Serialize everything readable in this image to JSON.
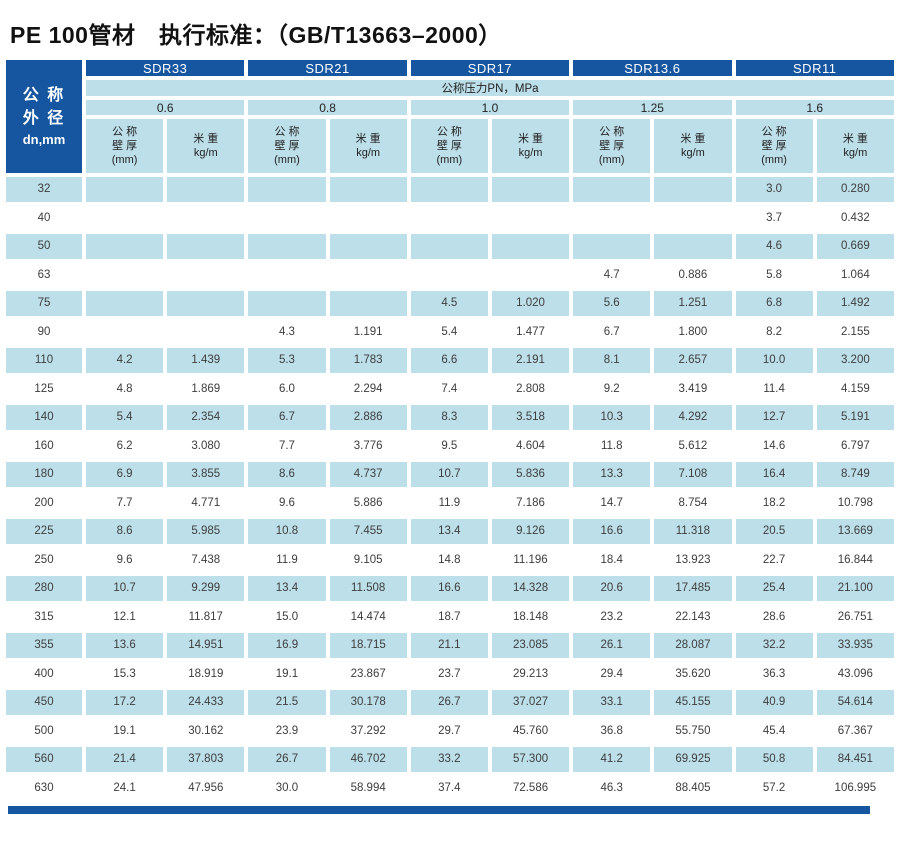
{
  "title": "PE 100管材　执行标准：（GB/T13663–2000）",
  "colors": {
    "dark_blue": "#1656A0",
    "light_blue": "#BDDFE9"
  },
  "table": {
    "corner": [
      "公 称",
      "外 径",
      "dn,mm"
    ],
    "sdr_headers": [
      "SDR33",
      "SDR21",
      "SDR17",
      "SDR13.6",
      "SDR11"
    ],
    "pressure_label": "公称压力PN，MPa",
    "pressures": [
      "0.6",
      "0.8",
      "1.0",
      "1.25",
      "1.6"
    ],
    "sub_headers": {
      "thickness": [
        "公 称",
        "壁 厚",
        "(mm)"
      ],
      "weight": [
        "米 重",
        "kg/m"
      ]
    },
    "rows": [
      {
        "dn": "32",
        "values": [
          "",
          "",
          "",
          "",
          "",
          "",
          "",
          "",
          "3.0",
          "0.280"
        ]
      },
      {
        "dn": "40",
        "values": [
          "",
          "",
          "",
          "",
          "",
          "",
          "",
          "",
          "3.7",
          "0.432"
        ]
      },
      {
        "dn": "50",
        "values": [
          "",
          "",
          "",
          "",
          "",
          "",
          "",
          "",
          "4.6",
          "0.669"
        ]
      },
      {
        "dn": "63",
        "values": [
          "",
          "",
          "",
          "",
          "",
          "",
          "4.7",
          "0.886",
          "5.8",
          "1.064"
        ]
      },
      {
        "dn": "75",
        "values": [
          "",
          "",
          "",
          "",
          "4.5",
          "1.020",
          "5.6",
          "1.251",
          "6.8",
          "1.492"
        ]
      },
      {
        "dn": "90",
        "values": [
          "",
          "",
          "4.3",
          "1.191",
          "5.4",
          "1.477",
          "6.7",
          "1.800",
          "8.2",
          "2.155"
        ]
      },
      {
        "dn": "110",
        "values": [
          "4.2",
          "1.439",
          "5.3",
          "1.783",
          "6.6",
          "2.191",
          "8.1",
          "2.657",
          "10.0",
          "3.200"
        ]
      },
      {
        "dn": "125",
        "values": [
          "4.8",
          "1.869",
          "6.0",
          "2.294",
          "7.4",
          "2.808",
          "9.2",
          "3.419",
          "11.4",
          "4.159"
        ]
      },
      {
        "dn": "140",
        "values": [
          "5.4",
          "2.354",
          "6.7",
          "2.886",
          "8.3",
          "3.518",
          "10.3",
          "4.292",
          "12.7",
          "5.191"
        ]
      },
      {
        "dn": "160",
        "values": [
          "6.2",
          "3.080",
          "7.7",
          "3.776",
          "9.5",
          "4.604",
          "11.8",
          "5.612",
          "14.6",
          "6.797"
        ]
      },
      {
        "dn": "180",
        "values": [
          "6.9",
          "3.855",
          "8.6",
          "4.737",
          "10.7",
          "5.836",
          "13.3",
          "7.108",
          "16.4",
          "8.749"
        ]
      },
      {
        "dn": "200",
        "values": [
          "7.7",
          "4.771",
          "9.6",
          "5.886",
          "11.9",
          "7.186",
          "14.7",
          "8.754",
          "18.2",
          "10.798"
        ]
      },
      {
        "dn": "225",
        "values": [
          "8.6",
          "5.985",
          "10.8",
          "7.455",
          "13.4",
          "9.126",
          "16.6",
          "11.318",
          "20.5",
          "13.669"
        ]
      },
      {
        "dn": "250",
        "values": [
          "9.6",
          "7.438",
          "11.9",
          "9.105",
          "14.8",
          "11.196",
          "18.4",
          "13.923",
          "22.7",
          "16.844"
        ]
      },
      {
        "dn": "280",
        "values": [
          "10.7",
          "9.299",
          "13.4",
          "11.508",
          "16.6",
          "14.328",
          "20.6",
          "17.485",
          "25.4",
          "21.100"
        ]
      },
      {
        "dn": "315",
        "values": [
          "12.1",
          "11.817",
          "15.0",
          "14.474",
          "18.7",
          "18.148",
          "23.2",
          "22.143",
          "28.6",
          "26.751"
        ]
      },
      {
        "dn": "355",
        "values": [
          "13.6",
          "14.951",
          "16.9",
          "18.715",
          "21.1",
          "23.085",
          "26.1",
          "28.087",
          "32.2",
          "33.935"
        ]
      },
      {
        "dn": "400",
        "values": [
          "15.3",
          "18.919",
          "19.1",
          "23.867",
          "23.7",
          "29.213",
          "29.4",
          "35.620",
          "36.3",
          "43.096"
        ]
      },
      {
        "dn": "450",
        "values": [
          "17.2",
          "24.433",
          "21.5",
          "30.178",
          "26.7",
          "37.027",
          "33.1",
          "45.155",
          "40.9",
          "54.614"
        ]
      },
      {
        "dn": "500",
        "values": [
          "19.1",
          "30.162",
          "23.9",
          "37.292",
          "29.7",
          "45.760",
          "36.8",
          "55.750",
          "45.4",
          "67.367"
        ]
      },
      {
        "dn": "560",
        "values": [
          "21.4",
          "37.803",
          "26.7",
          "46.702",
          "33.2",
          "57.300",
          "41.2",
          "69.925",
          "50.8",
          "84.451"
        ]
      },
      {
        "dn": "630",
        "values": [
          "24.1",
          "47.956",
          "30.0",
          "58.994",
          "37.4",
          "72.586",
          "46.3",
          "88.405",
          "57.2",
          "106.995"
        ]
      }
    ]
  }
}
